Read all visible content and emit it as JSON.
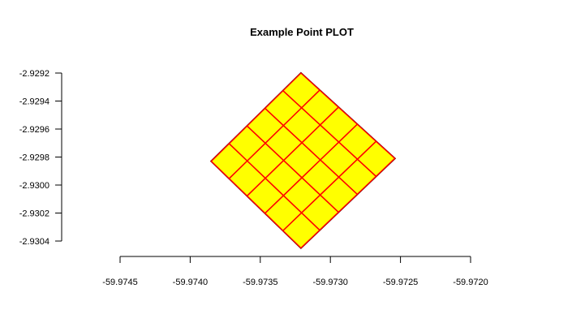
{
  "chart_data": {
    "type": "scatter",
    "title": "Example Point PLOT",
    "xlabel": "",
    "ylabel": "",
    "xlim": [
      -59.9745,
      -59.972
    ],
    "ylim": [
      -2.9304,
      -2.9292
    ],
    "x_ticks": [
      -59.9745,
      -59.974,
      -59.9735,
      -59.973,
      -59.9725,
      -59.972
    ],
    "x_tick_labels": [
      "-59.9745",
      "-59.9740",
      "-59.9735",
      "-59.9730",
      "-59.9725",
      "-59.9720"
    ],
    "y_ticks": [
      -2.9304,
      -2.9302,
      -2.93,
      -2.9298,
      -2.9296,
      -2.9294,
      -2.9292
    ],
    "y_tick_labels": [
      "-2.9304",
      "-2.9302",
      "-2.9300",
      "-2.9298",
      "-2.9296",
      "-2.9294",
      "-2.9292"
    ],
    "grid": false,
    "grid_outline": {
      "name": "",
      "color": "#000000",
      "points": [
        {
          "x": -59.97321,
          "y": -2.9292
        },
        {
          "x": -59.97254,
          "y": -2.92981
        },
        {
          "x": -59.97321,
          "y": -2.93045
        },
        {
          "x": -59.97385,
          "y": -2.92983
        }
      ]
    },
    "grid_cells": {
      "rows": 5,
      "cols": 5,
      "fill_color": "#ffff00",
      "edge_color": "#ff0000"
    }
  }
}
